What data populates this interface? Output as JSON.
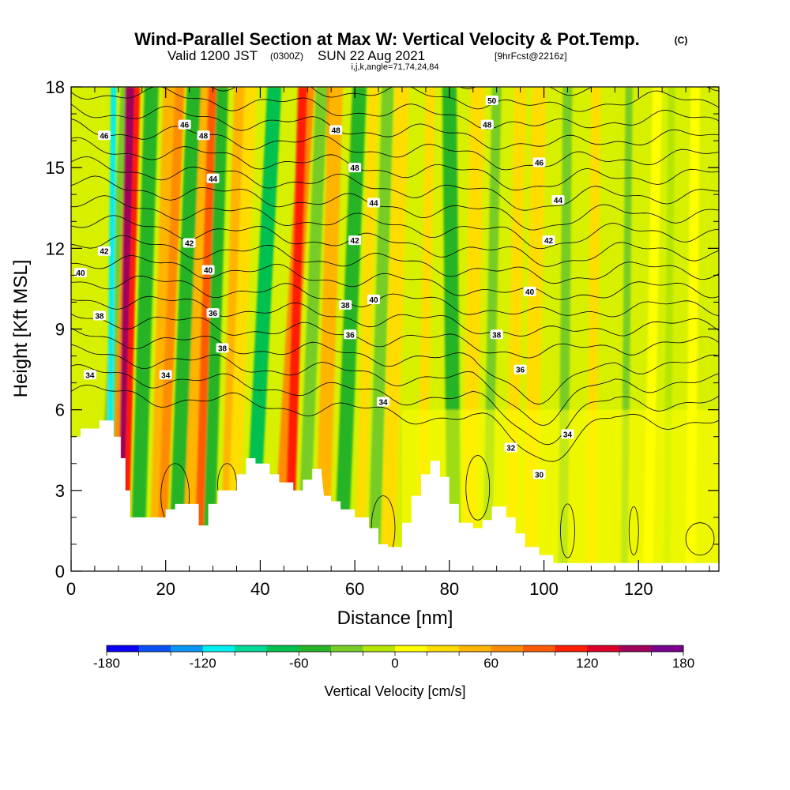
{
  "header": {
    "title": "Wind-Parallel Section at Max W: Vertical Velocity & Pot.Temp.",
    "title_mark": "(C)",
    "valid_a": "Valid 1200 JST",
    "valid_b": "(0300Z)",
    "valid_c": "SUN 22 Aug 2021",
    "valid_d": "[9hrFcst@2216z]",
    "indices": "i,j,k,angle=71,74,24,84"
  },
  "axes": {
    "ylabel": "Height [Kft MSL]",
    "xlabel": "Distance [nm]",
    "yticks": [
      "0",
      "3",
      "6",
      "9",
      "12",
      "15",
      "18"
    ],
    "xticks": [
      "0",
      "20",
      "40",
      "60",
      "80",
      "100",
      "120"
    ]
  },
  "colorbar": {
    "label": "Vertical Velocity [cm/s]",
    "ticks": [
      "-180",
      "-120",
      "-60",
      "0",
      "60",
      "120",
      "180"
    ],
    "colors": [
      "#0a00f5",
      "#0a50f5",
      "#0a96f5",
      "#00f0f0",
      "#00d896",
      "#00c050",
      "#28b428",
      "#78cc28",
      "#b4e600",
      "#ffff00",
      "#ffdc00",
      "#ffb400",
      "#ff8c00",
      "#ff5a00",
      "#ff1e00",
      "#dc0028",
      "#a0005a",
      "#78008c"
    ]
  },
  "chart_data": {
    "type": "heatmap",
    "title": "Wind-Parallel Section at Max W: Vertical Velocity & Pot.Temp.",
    "xlabel": "Distance [nm]",
    "ylabel": "Height [Kft MSL]",
    "xlim": [
      0,
      137
    ],
    "ylim": [
      0,
      18
    ],
    "field": "Vertical Velocity [cm/s]",
    "color_range": [
      -180,
      180
    ],
    "color_interval": 20,
    "contour_field": "Pot.Temp. (C)",
    "contour_labels": [
      {
        "x": 7,
        "y": 16.2,
        "text": "46"
      },
      {
        "x": 24,
        "y": 16.6,
        "text": "46"
      },
      {
        "x": 28,
        "y": 16.2,
        "text": "48"
      },
      {
        "x": 30,
        "y": 14.6,
        "text": "44"
      },
      {
        "x": 56,
        "y": 16.4,
        "text": "48"
      },
      {
        "x": 60,
        "y": 15.0,
        "text": "48"
      },
      {
        "x": 89,
        "y": 17.5,
        "text": "50"
      },
      {
        "x": 88,
        "y": 16.6,
        "text": "48"
      },
      {
        "x": 99,
        "y": 15.2,
        "text": "46"
      },
      {
        "x": 64,
        "y": 13.7,
        "text": "44"
      },
      {
        "x": 103,
        "y": 13.8,
        "text": "44"
      },
      {
        "x": 7,
        "y": 11.9,
        "text": "42"
      },
      {
        "x": 25,
        "y": 12.2,
        "text": "42"
      },
      {
        "x": 60,
        "y": 12.3,
        "text": "42"
      },
      {
        "x": 101,
        "y": 12.3,
        "text": "42"
      },
      {
        "x": 2,
        "y": 11.1,
        "text": "40"
      },
      {
        "x": 29,
        "y": 11.2,
        "text": "40"
      },
      {
        "x": 64,
        "y": 10.1,
        "text": "40"
      },
      {
        "x": 97,
        "y": 10.4,
        "text": "40"
      },
      {
        "x": 6,
        "y": 9.5,
        "text": "38"
      },
      {
        "x": 30,
        "y": 9.6,
        "text": "36"
      },
      {
        "x": 58,
        "y": 9.9,
        "text": "38"
      },
      {
        "x": 59,
        "y": 8.8,
        "text": "36"
      },
      {
        "x": 90,
        "y": 8.8,
        "text": "38"
      },
      {
        "x": 32,
        "y": 8.3,
        "text": "38"
      },
      {
        "x": 95,
        "y": 7.5,
        "text": "36"
      },
      {
        "x": 4,
        "y": 7.3,
        "text": "34"
      },
      {
        "x": 20,
        "y": 7.3,
        "text": "34"
      },
      {
        "x": 66,
        "y": 6.3,
        "text": "34"
      },
      {
        "x": 105,
        "y": 5.1,
        "text": "34"
      },
      {
        "x": 93,
        "y": 4.6,
        "text": "32"
      },
      {
        "x": 99,
        "y": 3.6,
        "text": "30"
      }
    ]
  }
}
